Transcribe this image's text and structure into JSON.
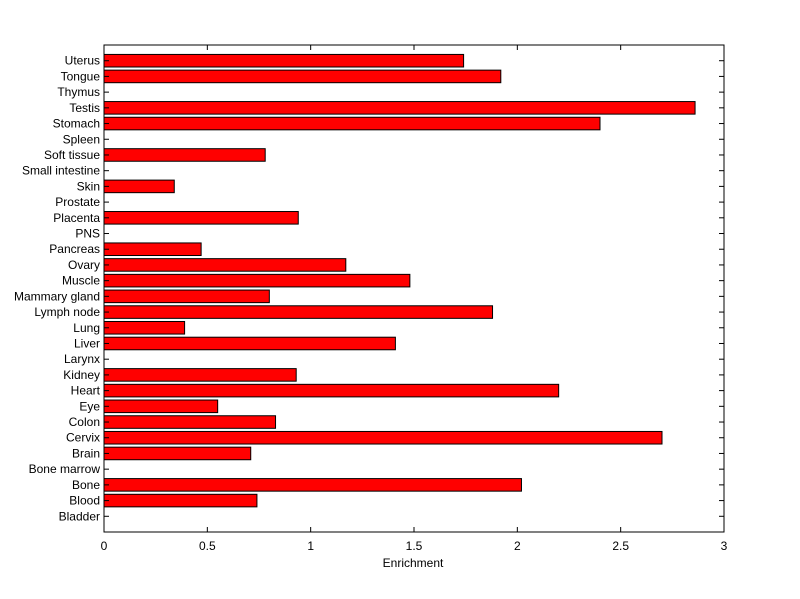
{
  "chart_data": {
    "type": "bar",
    "orientation": "horizontal",
    "title": "",
    "xlabel": "Enrichment",
    "ylabel": "",
    "xlim": [
      0,
      3
    ],
    "x_ticks": [
      "0",
      "0.5",
      "1",
      "1.5",
      "2",
      "2.5",
      "3"
    ],
    "grid": false,
    "bar_color": "#ff0000",
    "bar_edge_color": "#000000",
    "categories": [
      "Bladder",
      "Blood",
      "Bone",
      "Bone marrow",
      "Brain",
      "Cervix",
      "Colon",
      "Eye",
      "Heart",
      "Kidney",
      "Larynx",
      "Liver",
      "Lung",
      "Lymph node",
      "Mammary gland",
      "Muscle",
      "Ovary",
      "Pancreas",
      "PNS",
      "Placenta",
      "Prostate",
      "Skin",
      "Small intestine",
      "Soft tissue",
      "Spleen",
      "Stomach",
      "Testis",
      "Thymus",
      "Tongue",
      "Uterus"
    ],
    "values": [
      0,
      0.74,
      2.02,
      0,
      0.71,
      2.7,
      0.83,
      0.55,
      2.2,
      0.93,
      0,
      1.41,
      0.39,
      1.88,
      0.8,
      1.48,
      1.17,
      0.47,
      0,
      0.94,
      0,
      0.34,
      0,
      0.78,
      0,
      2.4,
      2.86,
      0,
      1.92,
      1.74
    ]
  }
}
